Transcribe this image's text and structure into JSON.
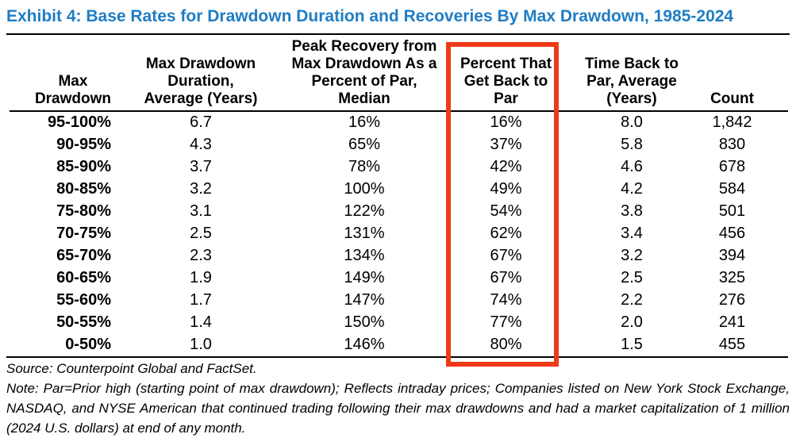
{
  "title": "Exhibit 4: Base Rates for Drawdown Duration and Recoveries By Max Drawdown, 1985-2024",
  "colors": {
    "title_blue": "#1f7dc4",
    "highlight_red": "#ee3a18",
    "text": "#000000"
  },
  "table": {
    "columns": [
      {
        "id": "max_drawdown",
        "label": "Max\nDrawdown"
      },
      {
        "id": "duration",
        "label": "Max Drawdown\nDuration,\nAverage (Years)"
      },
      {
        "id": "peak_recovery",
        "label": "Peak Recovery from\nMax Drawdown As a\nPercent of Par,\nMedian"
      },
      {
        "id": "pct_back_to_par",
        "label": "Percent That\nGet Back to\nPar",
        "highlighted": true
      },
      {
        "id": "time_back",
        "label": "Time Back to\nPar, Average\n(Years)"
      },
      {
        "id": "count",
        "label": "Count"
      }
    ],
    "rows": [
      [
        "95-100%",
        "6.7",
        "16%",
        "16%",
        "8.0",
        "1,842"
      ],
      [
        "90-95%",
        "4.3",
        "65%",
        "37%",
        "5.8",
        "830"
      ],
      [
        "85-90%",
        "3.7",
        "78%",
        "42%",
        "4.6",
        "678"
      ],
      [
        "80-85%",
        "3.2",
        "100%",
        "49%",
        "4.2",
        "584"
      ],
      [
        "75-80%",
        "3.1",
        "122%",
        "54%",
        "3.8",
        "501"
      ],
      [
        "70-75%",
        "2.5",
        "131%",
        "62%",
        "3.4",
        "456"
      ],
      [
        "65-70%",
        "2.3",
        "134%",
        "67%",
        "3.2",
        "394"
      ],
      [
        "60-65%",
        "1.9",
        "149%",
        "67%",
        "2.5",
        "325"
      ],
      [
        "55-60%",
        "1.7",
        "147%",
        "74%",
        "2.2",
        "276"
      ],
      [
        "50-55%",
        "1.4",
        "150%",
        "77%",
        "2.0",
        "241"
      ],
      [
        "0-50%",
        "1.0",
        "146%",
        "80%",
        "1.5",
        "455"
      ]
    ]
  },
  "footer": {
    "source": "Source: Counterpoint Global and FactSet.",
    "note": "Note: Par=Prior high (starting point of max drawdown); Reflects intraday prices; Companies listed on New York Stock Exchange, NASDAQ, and NYSE American that continued trading following their max drawdowns and had a market capitalization of 1 million (2024 U.S. dollars) at end of any month."
  }
}
